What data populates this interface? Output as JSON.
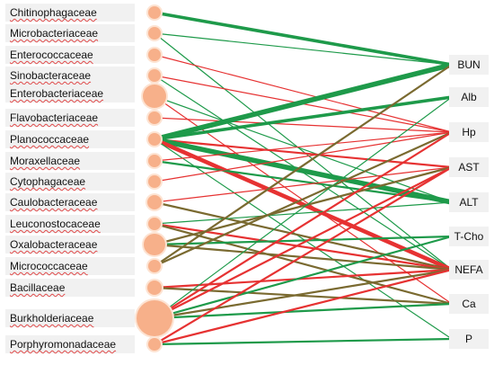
{
  "families": [
    "Chitinophagaceae",
    "Microbacteriaceae",
    "Enterococcaceae",
    "Sinobacteraceae",
    "Enterobacteriaceae",
    "Flavobacteriaceae",
    "Planococcaceae",
    "Moraxellaceae",
    "Cytophagaceae",
    "Caulobacteraceae",
    "Leuconostocaceae",
    "Oxalobacteraceae",
    "Micrococcaceae",
    "Bacillaceae",
    "Burkholderiaceae",
    "Porphyromonadaceae"
  ],
  "parameters": [
    "BUN",
    "Alb",
    "Hp",
    "AST",
    "ALT",
    "T-Cho",
    "NEFA",
    "Ca",
    "P"
  ],
  "colors": {
    "positive": "#1e9a4a",
    "negative": "#e63232",
    "mixed": "#7a6a30",
    "node": "#f7b08a",
    "label_bg": "#f1f1f1"
  },
  "edges": [
    {
      "from": 0,
      "to": 0,
      "color": "positive",
      "weight": 3
    },
    {
      "from": 1,
      "to": 0,
      "color": "positive",
      "weight": 1
    },
    {
      "from": 1,
      "to": 6,
      "color": "positive",
      "weight": 1
    },
    {
      "from": 2,
      "to": 2,
      "color": "negative",
      "weight": 1
    },
    {
      "from": 3,
      "to": 2,
      "color": "negative",
      "weight": 1
    },
    {
      "from": 3,
      "to": 6,
      "color": "positive",
      "weight": 1
    },
    {
      "from": 4,
      "to": 4,
      "color": "positive",
      "weight": 1
    },
    {
      "from": 4,
      "to": 7,
      "color": "negative",
      "weight": 1
    },
    {
      "from": 5,
      "to": 2,
      "color": "negative",
      "weight": 1
    },
    {
      "from": 6,
      "to": 0,
      "color": "positive",
      "weight": 5
    },
    {
      "from": 6,
      "to": 1,
      "color": "positive",
      "weight": 3
    },
    {
      "from": 6,
      "to": 3,
      "color": "negative",
      "weight": 2
    },
    {
      "from": 6,
      "to": 4,
      "color": "positive",
      "weight": 5
    },
    {
      "from": 6,
      "to": 6,
      "color": "negative",
      "weight": 4
    },
    {
      "from": 6,
      "to": 8,
      "color": "positive",
      "weight": 1
    },
    {
      "from": 7,
      "to": 2,
      "color": "negative",
      "weight": 1
    },
    {
      "from": 7,
      "to": 4,
      "color": "positive",
      "weight": 2
    },
    {
      "from": 8,
      "to": 2,
      "color": "negative",
      "weight": 1
    },
    {
      "from": 9,
      "to": 3,
      "color": "negative",
      "weight": 1
    },
    {
      "from": 9,
      "to": 6,
      "color": "mixed",
      "weight": 2
    },
    {
      "from": 10,
      "to": 4,
      "color": "positive",
      "weight": 1
    },
    {
      "from": 10,
      "to": 6,
      "color": "negative",
      "weight": 2
    },
    {
      "from": 10,
      "to": 7,
      "color": "mixed",
      "weight": 2
    },
    {
      "from": 11,
      "to": 3,
      "color": "mixed",
      "weight": 2
    },
    {
      "from": 11,
      "to": 5,
      "color": "positive",
      "weight": 2
    },
    {
      "from": 11,
      "to": 6,
      "color": "mixed",
      "weight": 2
    },
    {
      "from": 12,
      "to": 0,
      "color": "mixed",
      "weight": 2
    },
    {
      "from": 12,
      "to": 2,
      "color": "mixed",
      "weight": 2
    },
    {
      "from": 13,
      "to": 6,
      "color": "negative",
      "weight": 2
    },
    {
      "from": 13,
      "to": 7,
      "color": "mixed",
      "weight": 2
    },
    {
      "from": 14,
      "to": 1,
      "color": "positive",
      "weight": 1
    },
    {
      "from": 14,
      "to": 2,
      "color": "negative",
      "weight": 2
    },
    {
      "from": 14,
      "to": 3,
      "color": "negative",
      "weight": 2
    },
    {
      "from": 14,
      "to": 5,
      "color": "positive",
      "weight": 2
    },
    {
      "from": 14,
      "to": 6,
      "color": "mixed",
      "weight": 2
    },
    {
      "from": 14,
      "to": 7,
      "color": "positive",
      "weight": 2
    },
    {
      "from": 15,
      "to": 3,
      "color": "negative",
      "weight": 2
    },
    {
      "from": 15,
      "to": 6,
      "color": "negative",
      "weight": 2
    },
    {
      "from": 15,
      "to": 8,
      "color": "positive",
      "weight": 2
    }
  ]
}
